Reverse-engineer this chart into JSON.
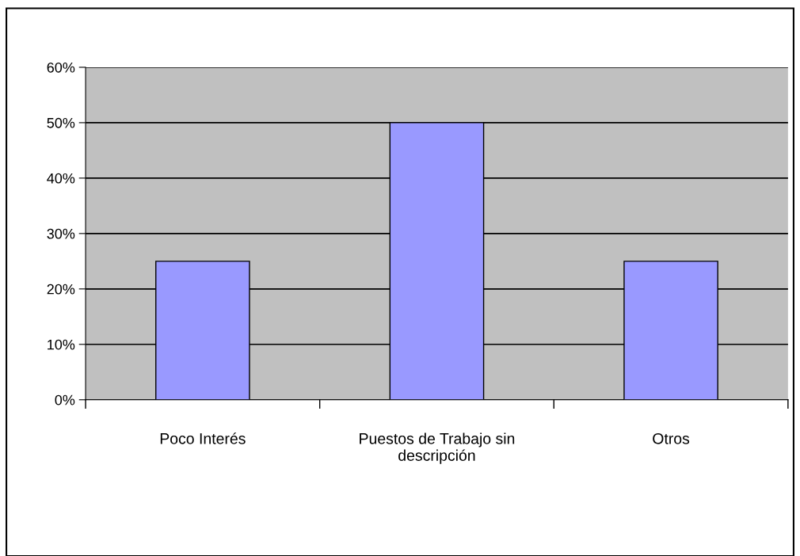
{
  "chart_data": {
    "type": "bar",
    "categories": [
      "Poco Interés",
      "Puestos de Trabajo sin descripción",
      "Otros"
    ],
    "values": [
      25,
      50,
      25
    ],
    "color": "#9999ff",
    "ylim": [
      0,
      60
    ],
    "yticks": [
      {
        "value": 0,
        "label": "0%"
      },
      {
        "value": 10,
        "label": "10%"
      },
      {
        "value": 20,
        "label": "20%"
      },
      {
        "value": 30,
        "label": "30%"
      },
      {
        "value": 40,
        "label": "40%"
      },
      {
        "value": 50,
        "label": "50%"
      },
      {
        "value": 60,
        "label": "60%"
      }
    ],
    "grid": "y",
    "legend": false
  }
}
